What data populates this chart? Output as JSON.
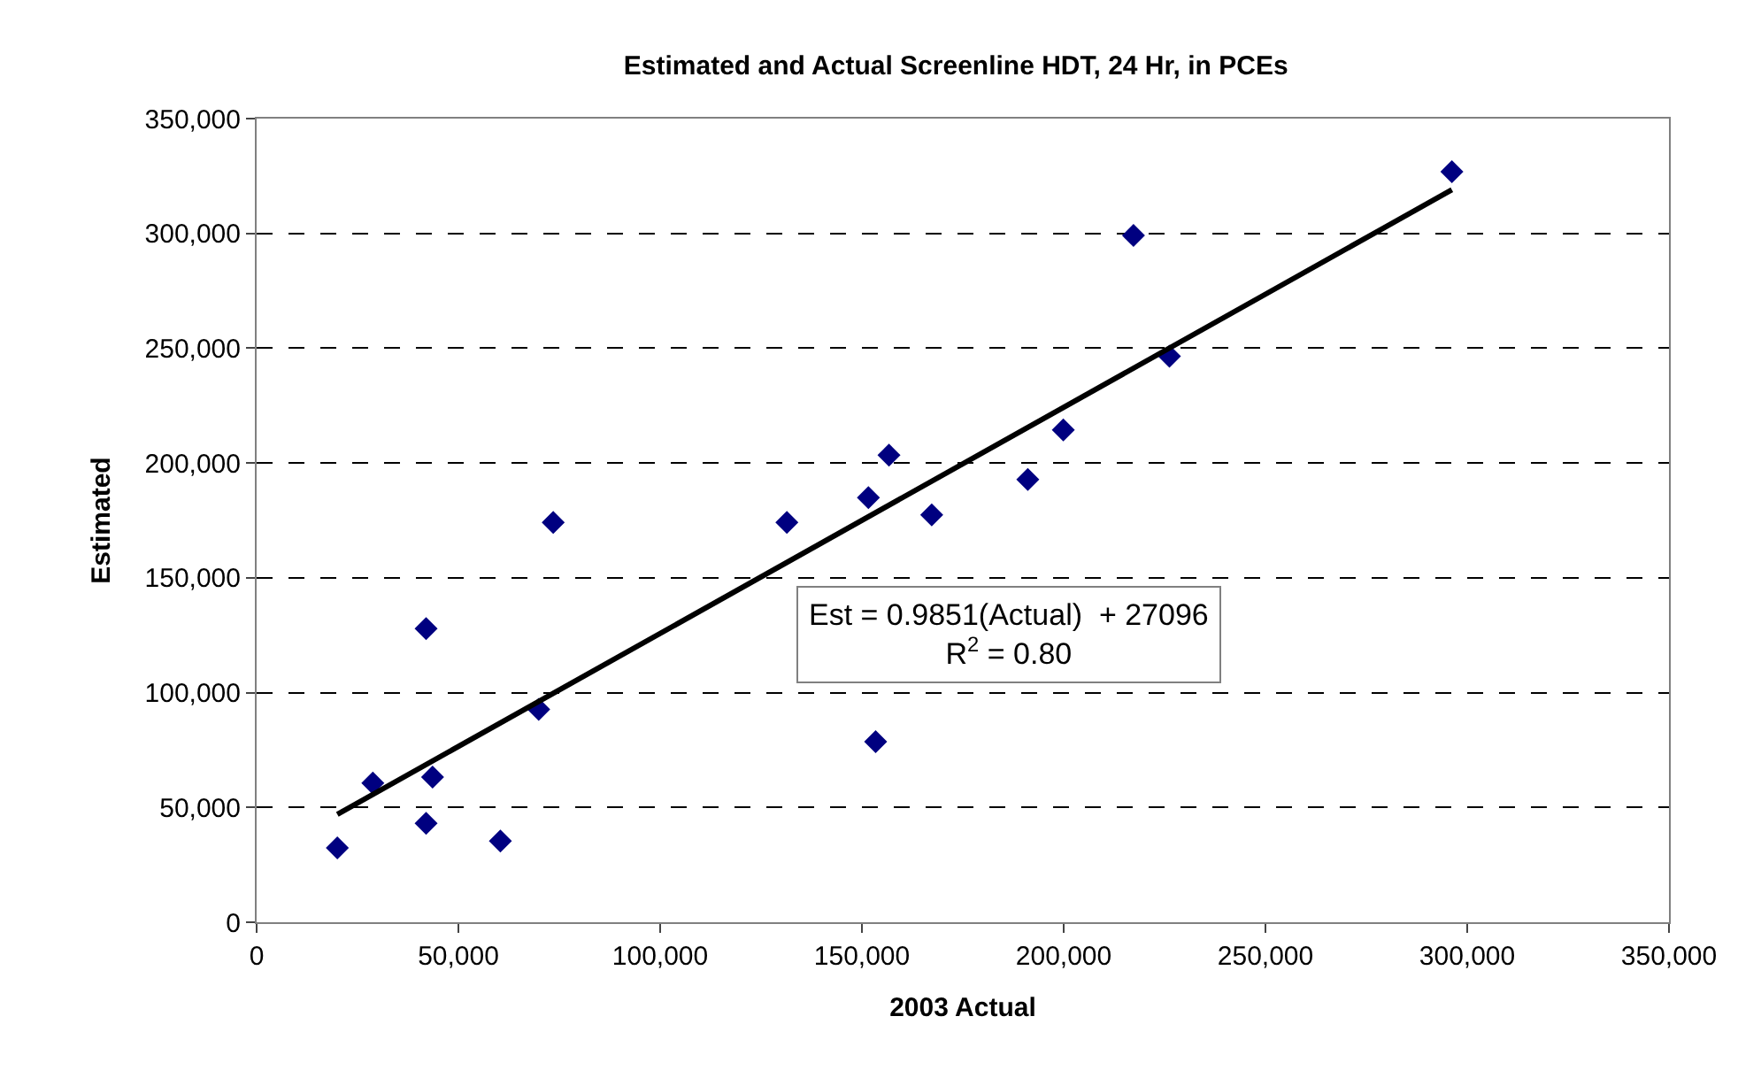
{
  "chart_data": {
    "type": "scatter",
    "title": "Estimated and Actual Screenline HDT, 24 Hr, in PCEs",
    "xlabel": "2003 Actual",
    "ylabel": "Estimated",
    "series": [
      {
        "color": "#000080",
        "marker": "diamond",
        "x": [
          20000,
          28800,
          42000,
          43600,
          42000,
          60400,
          69900,
          73500,
          131400,
          151600,
          156700,
          167300,
          153400,
          191100,
          199900,
          217300,
          226200,
          296200
        ],
        "values": [
          32400,
          60600,
          127900,
          63200,
          43100,
          35400,
          92700,
          174100,
          174100,
          184900,
          203400,
          177400,
          78600,
          192800,
          214400,
          299100,
          246500,
          326900
        ]
      },
      {
        "type": "line",
        "color": "#000000",
        "marker": "none",
        "line_style": "solid",
        "x": [
          20000,
          296200
        ],
        "values": [
          47000,
          319000
        ]
      }
    ],
    "xlim": [
      0,
      350000
    ],
    "ylim": [
      0,
      350000
    ],
    "xticks": [
      0,
      {
        "value": 50000,
        "label": "50,000"
      },
      {
        "value": 100000,
        "label": "100,000"
      },
      {
        "value": 150000,
        "label": "150,000"
      },
      {
        "value": 200000,
        "label": "200,000"
      },
      {
        "value": 250000,
        "label": "250,000"
      },
      {
        "value": 300000,
        "label": "300,000"
      },
      {
        "value": 350000,
        "label": "350,000"
      }
    ],
    "yticks": [
      0,
      {
        "value": 50000,
        "label": "50,000"
      },
      {
        "value": 100000,
        "label": "100,000"
      },
      {
        "value": 150000,
        "label": "150,000"
      },
      {
        "value": 200000,
        "label": "200,000"
      },
      {
        "value": 250000,
        "label": "250,000"
      },
      {
        "value": 300000,
        "label": "300,000"
      },
      {
        "value": 350000,
        "label": "350,000"
      }
    ],
    "grid": "y",
    "annotations": [
      "Est = 0.9851(Actual)  + 27096\nR$^{2}$ = 0.80"
    ]
  }
}
